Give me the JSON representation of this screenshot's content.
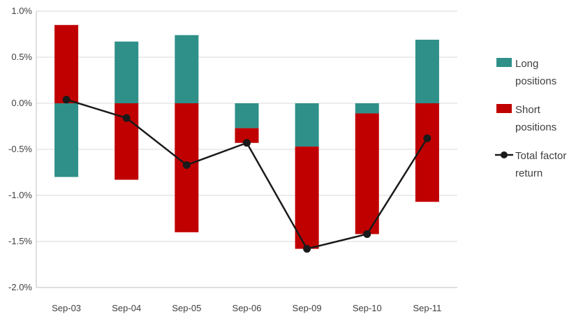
{
  "chart_data": {
    "type": "bar",
    "stacked": true,
    "categories": [
      "Sep-03",
      "Sep-04",
      "Sep-05",
      "Sep-06",
      "Sep-09",
      "Sep-10",
      "Sep-11"
    ],
    "series": [
      {
        "name": "Long positions",
        "kind": "bar",
        "color": "#2E9089",
        "values": [
          -0.8,
          0.67,
          0.74,
          -0.27,
          -0.47,
          -0.11,
          0.69
        ]
      },
      {
        "name": "Short positions",
        "kind": "bar",
        "color": "#C00000",
        "values": [
          0.85,
          -0.83,
          -1.4,
          -0.16,
          -1.11,
          -1.31,
          -1.07
        ]
      },
      {
        "name": "Total factor return",
        "kind": "line",
        "color": "#1A1A1A",
        "values": [
          0.04,
          -0.16,
          -0.67,
          -0.43,
          -1.58,
          -1.42,
          -0.38
        ]
      }
    ],
    "legend_labels": [
      [
        "Long",
        "positions"
      ],
      [
        "Short",
        "positions"
      ],
      [
        "Total factor",
        "return"
      ]
    ],
    "yticks": [
      "1.0%",
      "0.5%",
      "0.0%",
      "-0.5%",
      "-1.0%",
      "-1.5%",
      "-2.0%"
    ],
    "ytick_values": [
      1.0,
      0.5,
      0.0,
      -0.5,
      -1.0,
      -1.5,
      -2.0
    ],
    "ylim": [
      -2.0,
      1.0
    ],
    "grid": true,
    "legend": "right",
    "title": "",
    "xlabel": "",
    "ylabel": ""
  }
}
